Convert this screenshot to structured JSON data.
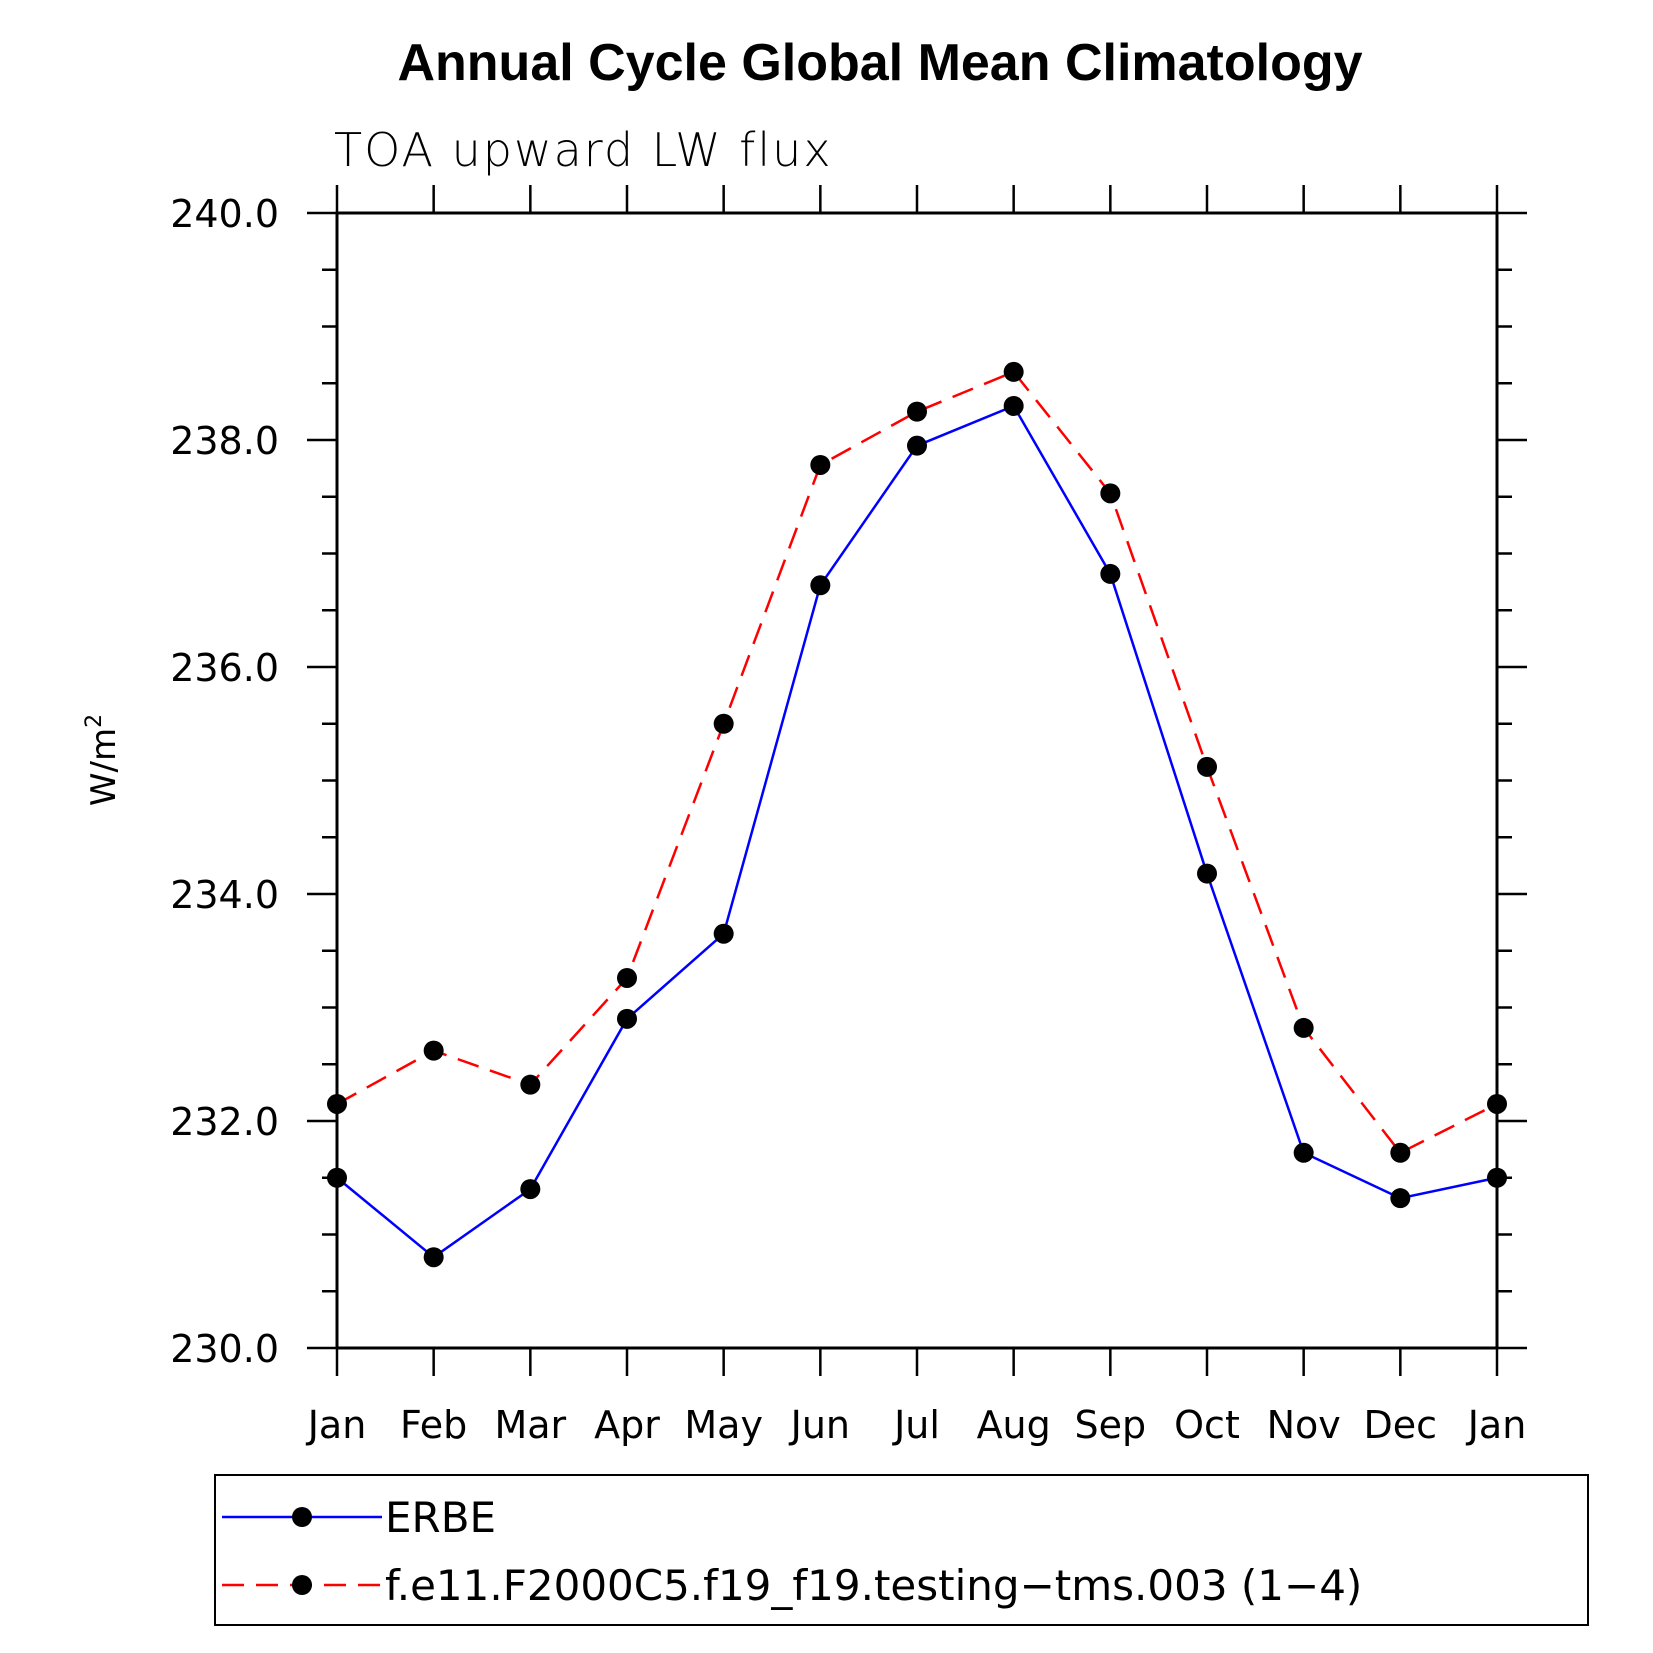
{
  "chart_data": {
    "type": "line",
    "title": "Annual Cycle Global Mean Climatology",
    "subtitle": "TOA upward LW flux",
    "ylabel": "W/m",
    "ylabel_superscript": "2",
    "ylim": [
      230.0,
      240.0
    ],
    "y_ticks": [
      "230.0",
      "232.0",
      "234.0",
      "236.0",
      "238.0",
      "240.0"
    ],
    "y_tick_values": [
      230,
      232,
      234,
      236,
      238,
      240
    ],
    "categories": [
      "Jan",
      "Feb",
      "Mar",
      "Apr",
      "May",
      "Jun",
      "Jul",
      "Aug",
      "Sep",
      "Oct",
      "Nov",
      "Dec",
      "Jan"
    ],
    "series": [
      {
        "name": "ERBE",
        "color": "#0000ff",
        "dash": "solid",
        "values": [
          231.5,
          230.8,
          231.4,
          232.9,
          233.65,
          236.72,
          237.95,
          238.3,
          236.82,
          234.18,
          231.72,
          231.32,
          231.5
        ]
      },
      {
        "name": "f.e11.F2000C5.f19_f19.testing−tms.003 (1−4)",
        "color": "#ff0000",
        "dash": "dashed",
        "values": [
          232.15,
          232.62,
          232.32,
          233.26,
          235.5,
          237.78,
          238.25,
          238.6,
          237.53,
          235.12,
          232.82,
          231.72,
          232.15
        ]
      }
    ],
    "legend_position": "bottom"
  }
}
